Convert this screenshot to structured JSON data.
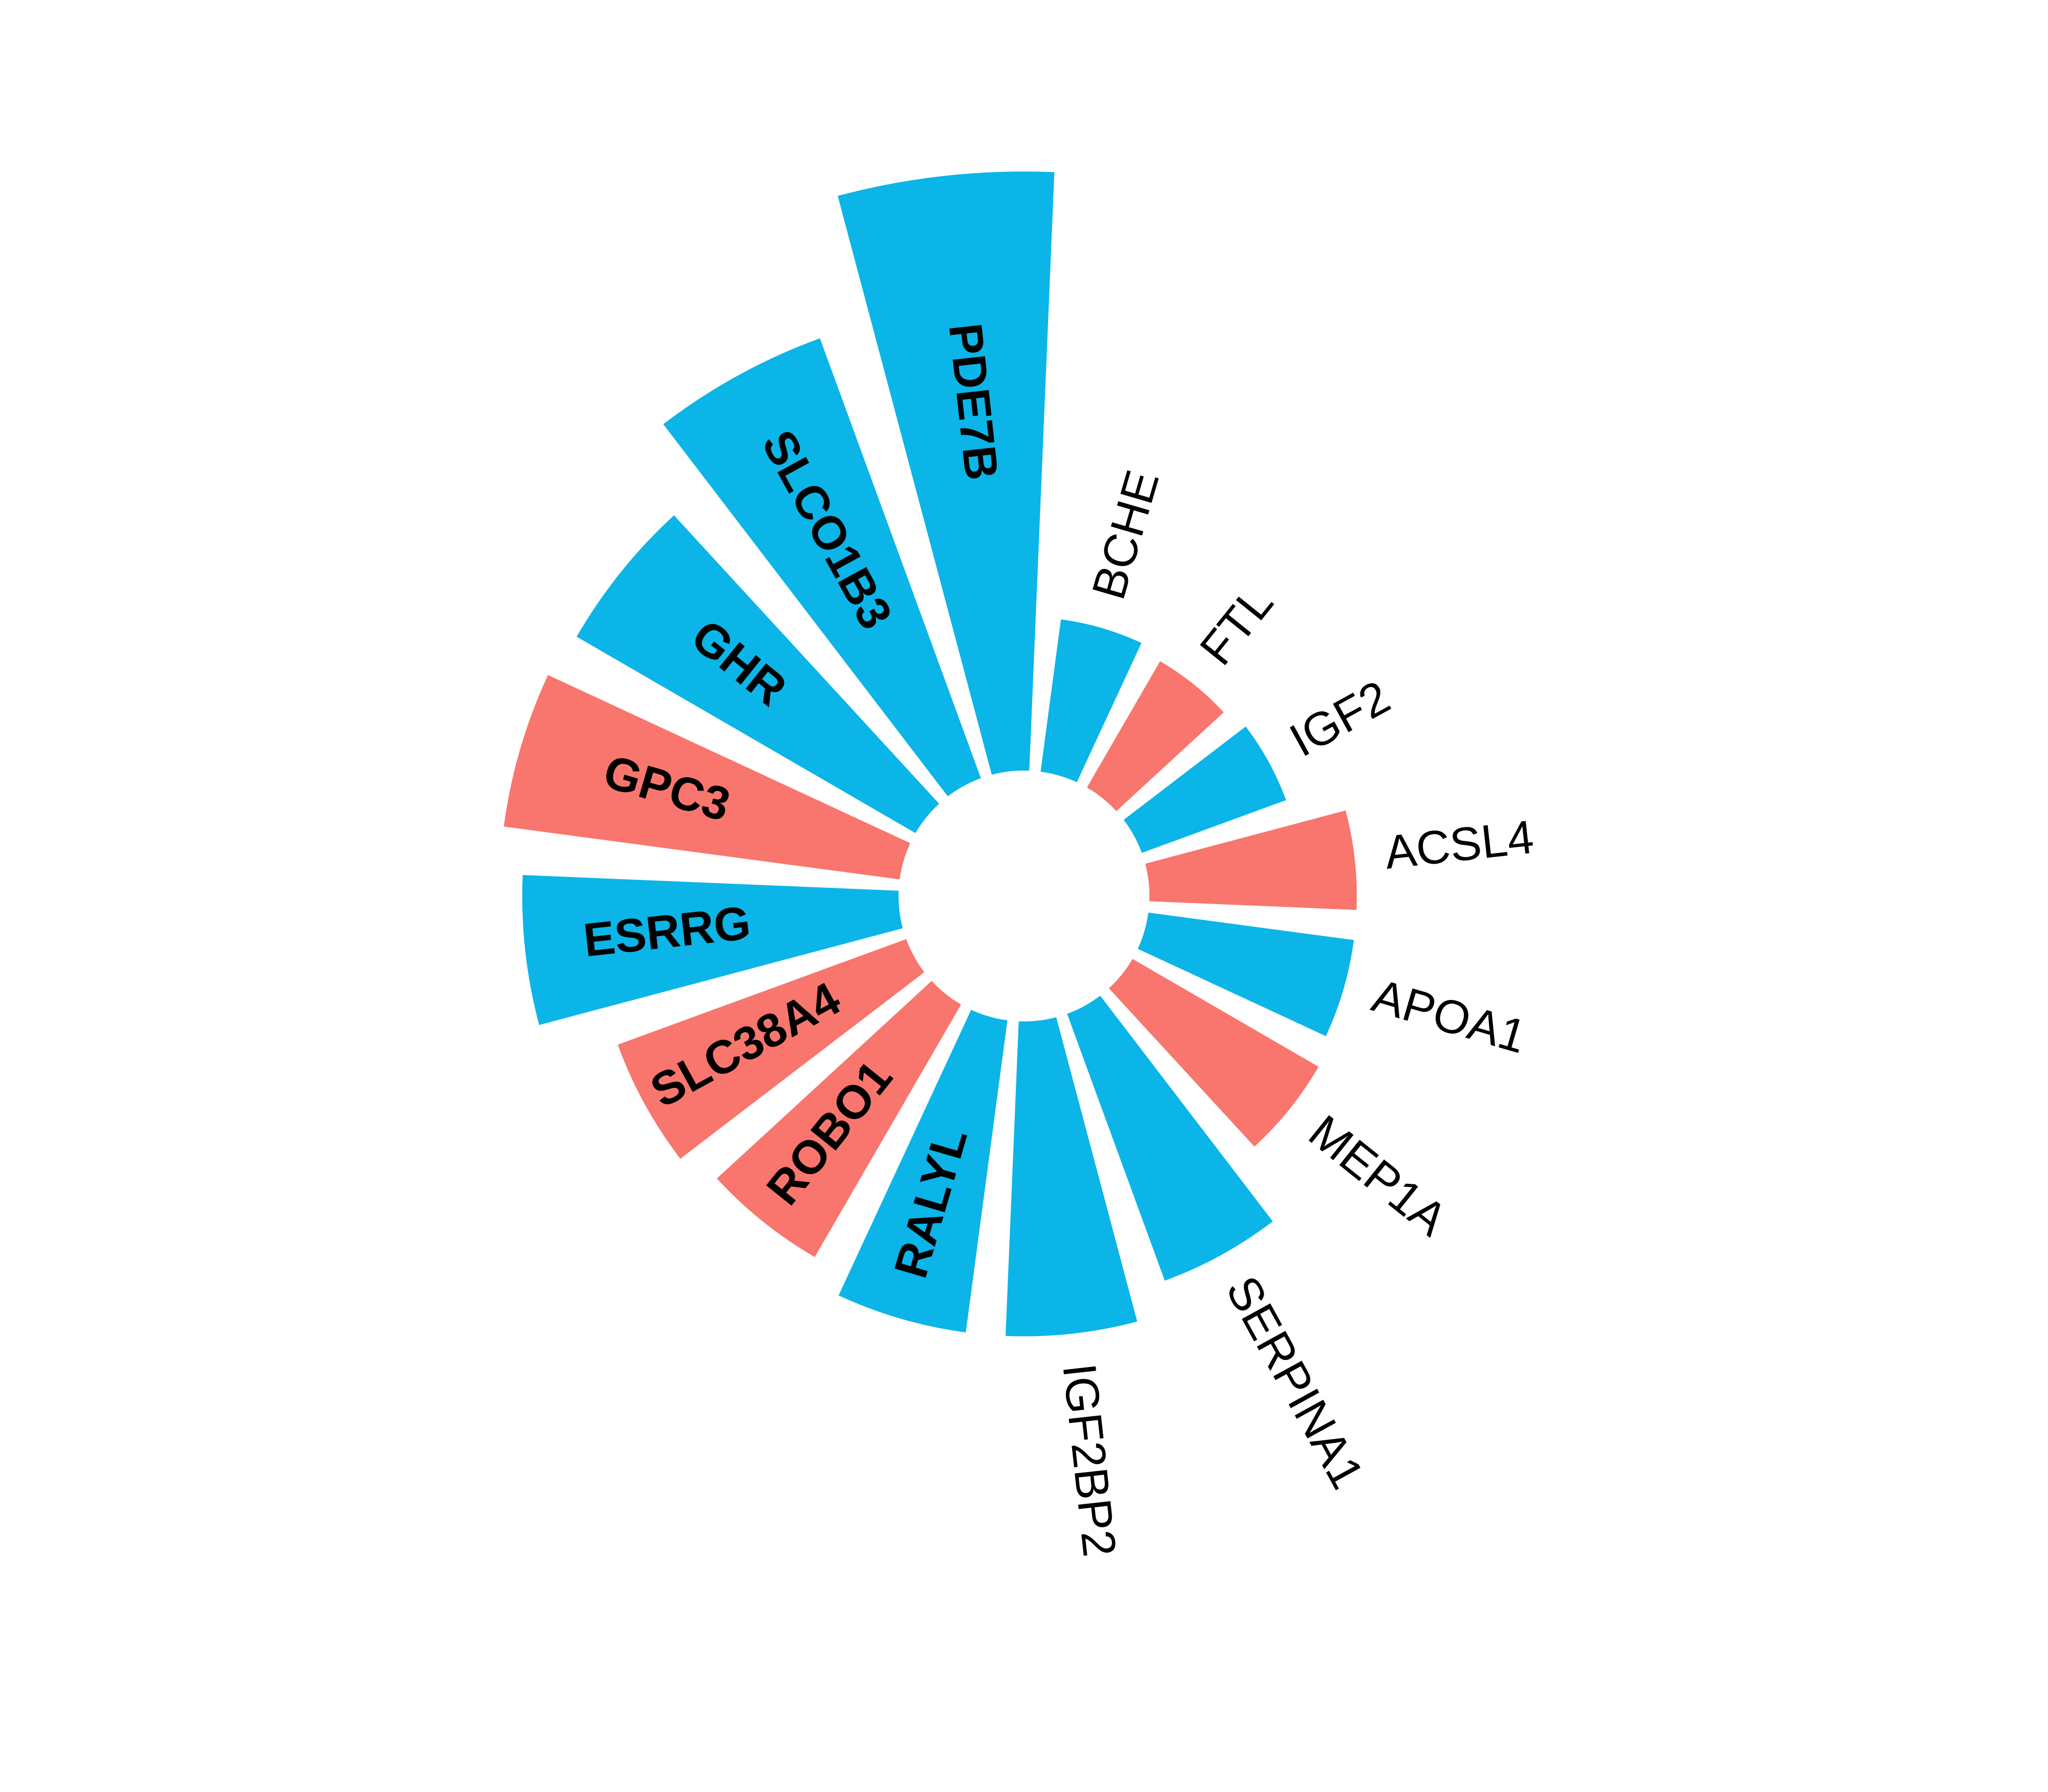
{
  "chart_data": {
    "type": "bar",
    "subtype": "circular",
    "title": "",
    "categories": [
      "BCHE",
      "FTL",
      "IGF2",
      "ACSL4",
      "APOA1",
      "MEP1A",
      "SERPINA1",
      "IGF2BP2",
      "RALYL",
      "ROBO1",
      "SLC38A4",
      "ESRRG",
      "GPC3",
      "GHR",
      "SLCO1B3",
      "PDE7B"
    ],
    "values": [
      1.0,
      0.95,
      1.0,
      1.35,
      1.35,
      1.4,
      1.85,
      2.05,
      2.05,
      1.9,
      2.0,
      2.45,
      2.6,
      2.55,
      3.05,
      3.9
    ],
    "colors": [
      "#0BB5E8",
      "#F8766D",
      "#0BB5E8",
      "#F8766D",
      "#0BB5E8",
      "#F8766D",
      "#0BB5E8",
      "#0BB5E8",
      "#0BB5E8",
      "#F8766D",
      "#F8766D",
      "#0BB5E8",
      "#F8766D",
      "#0BB5E8",
      "#0BB5E8",
      "#0BB5E8"
    ],
    "label_position": [
      "outside",
      "outside",
      "outside",
      "outside",
      "outside",
      "outside",
      "outside",
      "outside",
      "inside",
      "inside",
      "inside",
      "inside",
      "inside",
      "inside",
      "inside",
      "inside"
    ],
    "color_legend": {
      "#0BB5E8": "blue",
      "#F8766D": "salmon"
    },
    "ylim": [
      0,
      4
    ],
    "grid": false,
    "legend": "none"
  }
}
